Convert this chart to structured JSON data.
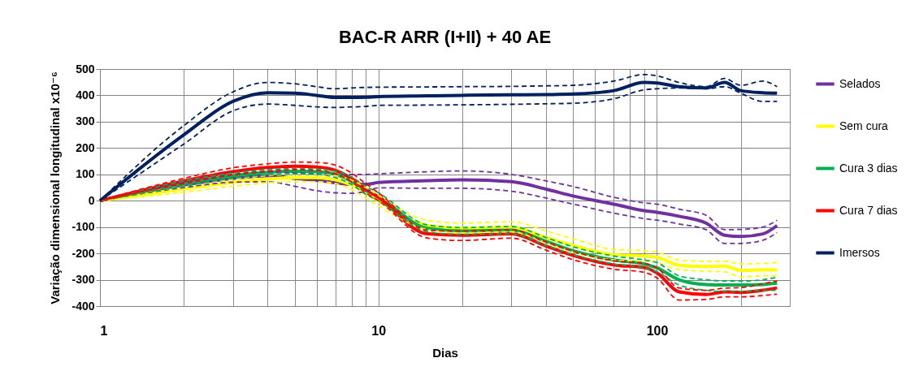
{
  "chart_data": {
    "type": "line",
    "title": "BAC-R ARR (I+II) + 40 AE",
    "xlabel": "Dias",
    "ylabel": "Variação dimensional longitudinal x10⁻⁶",
    "log": "x",
    "grid": true,
    "legend": "right",
    "x": [
      1,
      2,
      3,
      4,
      5,
      6,
      7,
      8,
      9,
      10,
      15,
      20,
      30,
      40,
      50,
      70,
      90,
      100,
      120,
      150,
      175,
      200,
      240,
      270
    ],
    "xlim": [
      1,
      300
    ],
    "xticks": [
      1,
      {
        "value": 2,
        "label": null
      },
      {
        "value": 3,
        "label": null
      },
      {
        "value": 4,
        "label": null
      },
      {
        "value": 5,
        "label": null
      },
      {
        "value": 6,
        "label": null
      },
      {
        "value": 7,
        "label": null
      },
      {
        "value": 8,
        "label": null
      },
      {
        "value": 9,
        "label": null
      },
      10,
      {
        "value": 20,
        "label": null
      },
      {
        "value": 30,
        "label": null
      },
      {
        "value": 40,
        "label": null
      },
      {
        "value": 50,
        "label": null
      },
      {
        "value": 60,
        "label": null
      },
      {
        "value": 70,
        "label": null
      },
      {
        "value": 80,
        "label": null
      },
      {
        "value": 90,
        "label": null
      },
      100,
      {
        "value": 200,
        "label": null
      },
      {
        "value": 300,
        "label": null
      }
    ],
    "ylim": [
      -400,
      500
    ],
    "yticks": [
      -400,
      -300,
      -200,
      -100,
      0,
      100,
      200,
      300,
      400,
      500
    ],
    "series": [
      {
        "name": "Selados",
        "color": "#7030a0",
        "line_style": "solid",
        "values": [
          0,
          60,
          85,
          95,
          85,
          78,
          68,
          62,
          62,
          69,
          76,
          79,
          72,
          44,
          18,
          -13,
          -38,
          -44,
          -59,
          -85,
          -131,
          -136,
          -126,
          -94
        ]
      },
      {
        "name": "Sem cura",
        "color": "#ffff00",
        "line_style": "solid",
        "values": [
          0,
          45,
          70,
          82,
          88,
          88,
          80,
          60,
          30,
          0,
          -95,
          -105,
          -100,
          -140,
          -170,
          -205,
          -210,
          -215,
          -245,
          -250,
          -248,
          -265,
          -262,
          -263
        ]
      },
      {
        "name": "Cura 3 dias",
        "color": "#00b050",
        "line_style": "solid",
        "values": [
          0,
          65,
          95,
          108,
          112,
          110,
          100,
          75,
          40,
          15,
          -105,
          -115,
          -112,
          -155,
          -190,
          -225,
          -240,
          -255,
          -300,
          -318,
          -320,
          -320,
          -318,
          -313
        ]
      },
      {
        "name": "Cura 7 dias",
        "color": "#ff0000",
        "line_style": "solid",
        "values": [
          0,
          75,
          110,
          126,
          131,
          128,
          115,
          85,
          44,
          13,
          -126,
          -131,
          -126,
          -172,
          -208,
          -244,
          -254,
          -274,
          -346,
          -356,
          -346,
          -348,
          -340,
          -331
        ]
      },
      {
        "name": "Imersos",
        "color": "#002060",
        "line_style": "solid",
        "values": [
          0,
          250,
          377,
          410,
          408,
          400,
          392,
          392,
          393,
          395,
          398,
          400,
          402,
          403,
          405,
          418,
          449,
          447,
          433,
          428,
          449,
          418,
          410,
          408
        ]
      },
      {
        "color": "#7030a0",
        "line_style": "dashed",
        "values": [
          0,
          70,
          100,
          110,
          105,
          102,
          100,
          100,
          100,
          102,
          110,
          113,
          100,
          75,
          54,
          13,
          -8,
          -13,
          -32,
          -55,
          -110,
          -109,
          -100,
          -74
        ]
      },
      {
        "color": "#7030a0",
        "line_style": "dashed",
        "values": [
          0,
          50,
          70,
          72,
          55,
          38,
          30,
          28,
          35,
          49,
          47,
          47,
          36,
          10,
          -13,
          -47,
          -68,
          -74,
          -88,
          -110,
          -162,
          -162,
          -150,
          -121
        ]
      },
      {
        "color": "#ffff00",
        "line_style": "dashed",
        "values": [
          0,
          55,
          82,
          95,
          100,
          100,
          95,
          78,
          50,
          20,
          -75,
          -85,
          -80,
          -115,
          -145,
          -185,
          -190,
          -195,
          -225,
          -230,
          -230,
          -240,
          -238,
          -235
        ]
      },
      {
        "color": "#ffff00",
        "line_style": "dashed",
        "values": [
          0,
          32,
          55,
          68,
          72,
          72,
          65,
          42,
          10,
          -20,
          -110,
          -122,
          -118,
          -160,
          -195,
          -225,
          -230,
          -235,
          -262,
          -268,
          -270,
          -290,
          -285,
          -285
        ]
      },
      {
        "color": "#00b050",
        "line_style": "dashed",
        "values": [
          0,
          75,
          105,
          118,
          122,
          120,
          112,
          90,
          55,
          30,
          -92,
          -102,
          -98,
          -140,
          -175,
          -210,
          -225,
          -235,
          -285,
          -300,
          -305,
          -305,
          -300,
          -290
        ]
      },
      {
        "color": "#00b050",
        "line_style": "dashed",
        "values": [
          0,
          55,
          85,
          98,
          102,
          100,
          88,
          62,
          25,
          0,
          -118,
          -128,
          -126,
          -170,
          -205,
          -240,
          -255,
          -270,
          -320,
          -340,
          -345,
          -345,
          -340,
          -340
        ]
      },
      {
        "color": "#ff0000",
        "line_style": "dashed",
        "values": [
          0,
          85,
          125,
          140,
          147,
          145,
          135,
          105,
          65,
          30,
          -112,
          -115,
          -110,
          -157,
          -192,
          -228,
          -238,
          -255,
          -331,
          -340,
          -332,
          -330,
          -315,
          -305
        ]
      },
      {
        "color": "#ff0000",
        "line_style": "dashed",
        "values": [
          0,
          65,
          98,
          112,
          118,
          115,
          102,
          72,
          30,
          0,
          -142,
          -151,
          -142,
          -188,
          -224,
          -260,
          -272,
          -293,
          -377,
          -375,
          -365,
          -365,
          -360,
          -355
        ]
      },
      {
        "color": "#002060",
        "line_style": "dashed",
        "values": [
          0,
          285,
          413,
          449,
          444,
          433,
          425,
          428,
          430,
          431,
          432,
          433,
          434,
          436,
          438,
          454,
          479,
          474,
          449,
          433,
          464,
          438,
          454,
          433
        ]
      },
      {
        "color": "#002060",
        "line_style": "dashed",
        "values": [
          0,
          215,
          341,
          367,
          362,
          356,
          354,
          356,
          358,
          362,
          363,
          364,
          366,
          368,
          370,
          387,
          421,
          425,
          428,
          425,
          433,
          408,
          377,
          377
        ]
      }
    ]
  }
}
